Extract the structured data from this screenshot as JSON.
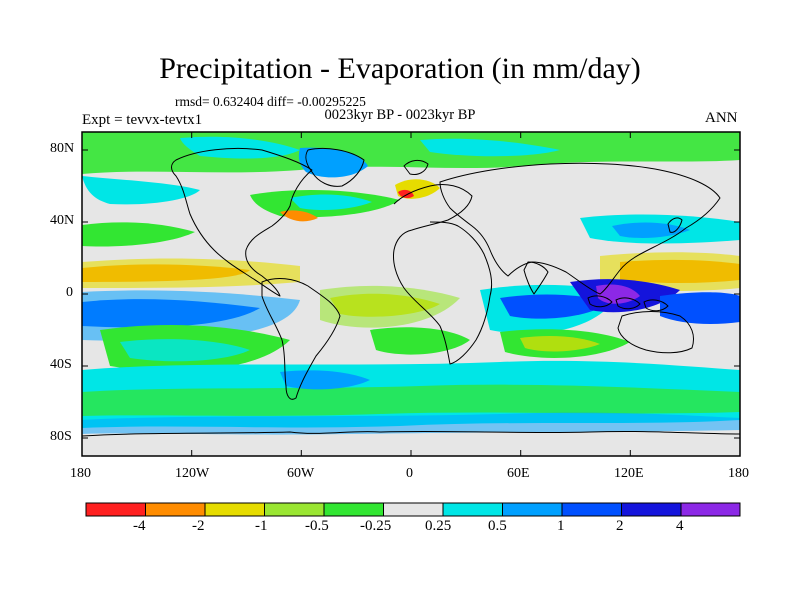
{
  "figure": {
    "title": "Precipitation - Evaporation (in mm/day)",
    "stats": "rmsd= 0.632404 diff= -0.00295225",
    "period": "0023kyr BP - 0023kyr BP",
    "expt": "Expt = tevvx-tevtx1",
    "season": "ANN"
  },
  "axes": {
    "y_ticks": [
      "80N",
      "40N",
      "0",
      "40S",
      "80S"
    ],
    "x_ticks": [
      "180",
      "120W",
      "60W",
      "0",
      "60E",
      "120E",
      "180"
    ]
  },
  "colorbar": {
    "labels": [
      "-4",
      "-2",
      "-1",
      "-0.5",
      "-0.25",
      "0.25",
      "0.5",
      "1",
      "2",
      "4"
    ],
    "colors": [
      "#ff2020",
      "#ff8c00",
      "#e6dc00",
      "#9ae632",
      "#32e632",
      "#e6e6e6",
      "#00e6e6",
      "#00a0ff",
      "#0050ff",
      "#1414dc",
      "#8c28e6"
    ]
  }
}
